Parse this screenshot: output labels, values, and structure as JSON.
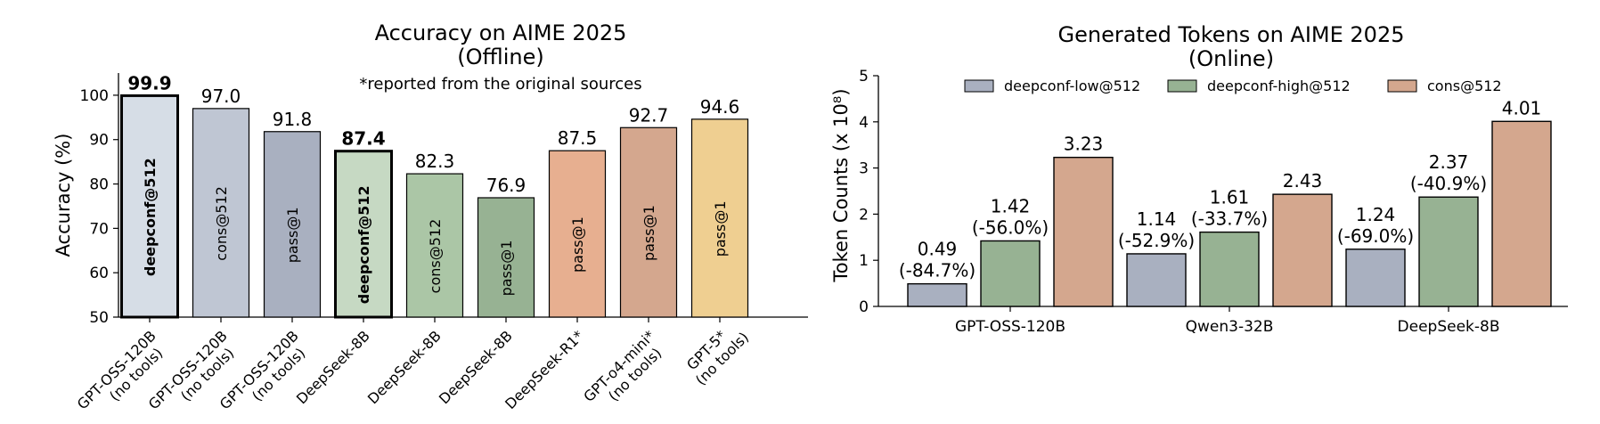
{
  "chart_data": [
    {
      "type": "bar",
      "title": "Accuracy on AIME 2025",
      "subtitle": "(Offline)",
      "annotation": "*reported from the original sources",
      "ylabel": "Accuracy (%)",
      "ylim": [
        50,
        105
      ],
      "yticks": [
        50,
        60,
        70,
        80,
        90,
        100
      ],
      "grid": false,
      "bars": [
        {
          "category": "GPT-OSS-120B\n(no tools)",
          "method": "deepconf@512",
          "value": 99.9,
          "value_label": "99.9",
          "color": "#d6dde6",
          "highlight": true
        },
        {
          "category": "GPT-OSS-120B\n(no tools)",
          "method": "cons@512",
          "value": 97.0,
          "value_label": "97.0",
          "color": "#bfc6d3",
          "highlight": false
        },
        {
          "category": "GPT-OSS-120B\n(no tools)",
          "method": "pass@1",
          "value": 91.8,
          "value_label": "91.8",
          "color": "#a9b0c0",
          "highlight": false
        },
        {
          "category": "DeepSeek-8B",
          "method": "deepconf@512",
          "value": 87.4,
          "value_label": "87.4",
          "color": "#c6d9c3",
          "highlight": true
        },
        {
          "category": "DeepSeek-8B",
          "method": "cons@512",
          "value": 82.3,
          "value_label": "82.3",
          "color": "#abc6a6",
          "highlight": false
        },
        {
          "category": "DeepSeek-8B",
          "method": "pass@1",
          "value": 76.9,
          "value_label": "76.9",
          "color": "#97b293",
          "highlight": false
        },
        {
          "category": "DeepSeek-R1*",
          "method": "pass@1",
          "value": 87.5,
          "value_label": "87.5",
          "color": "#e7af90",
          "highlight": false
        },
        {
          "category": "GPT-o4-mini*\n(no tools)",
          "method": "pass@1",
          "value": 92.7,
          "value_label": "92.7",
          "color": "#d4a78e",
          "highlight": false
        },
        {
          "category": "GPT-5*\n(no tools)",
          "method": "pass@1",
          "value": 94.6,
          "value_label": "94.6",
          "color": "#efcf91",
          "highlight": false
        }
      ]
    },
    {
      "type": "bar",
      "title": "Generated Tokens on AIME 2025",
      "subtitle": "(Online)",
      "ylabel": "Token Counts (x 10⁸)",
      "ylim": [
        0,
        5
      ],
      "yticks": [
        0,
        1,
        2,
        3,
        4,
        5
      ],
      "grid": false,
      "legend_placement": "top",
      "categories": [
        "GPT-OSS-120B",
        "Qwen3-32B",
        "DeepSeek-8B"
      ],
      "series": [
        {
          "name": "deepconf-low@512",
          "color": "#a9b0c0",
          "values": [
            0.49,
            1.14,
            1.24
          ],
          "labels": [
            [
              "0.49",
              "(-84.7%)"
            ],
            [
              "1.14",
              "(-52.9%)"
            ],
            [
              "1.24",
              "(-69.0%)"
            ]
          ]
        },
        {
          "name": "deepconf-high@512",
          "color": "#97b293",
          "values": [
            1.42,
            1.61,
            2.37
          ],
          "labels": [
            [
              "1.42",
              "(-56.0%)"
            ],
            [
              "1.61",
              "(-33.7%)"
            ],
            [
              "2.37",
              "(-40.9%)"
            ]
          ]
        },
        {
          "name": "cons@512",
          "color": "#d4a78e",
          "values": [
            3.23,
            2.43,
            4.01
          ],
          "labels": [
            [
              "3.23"
            ],
            [
              "2.43"
            ],
            [
              "4.01"
            ]
          ]
        }
      ]
    }
  ]
}
